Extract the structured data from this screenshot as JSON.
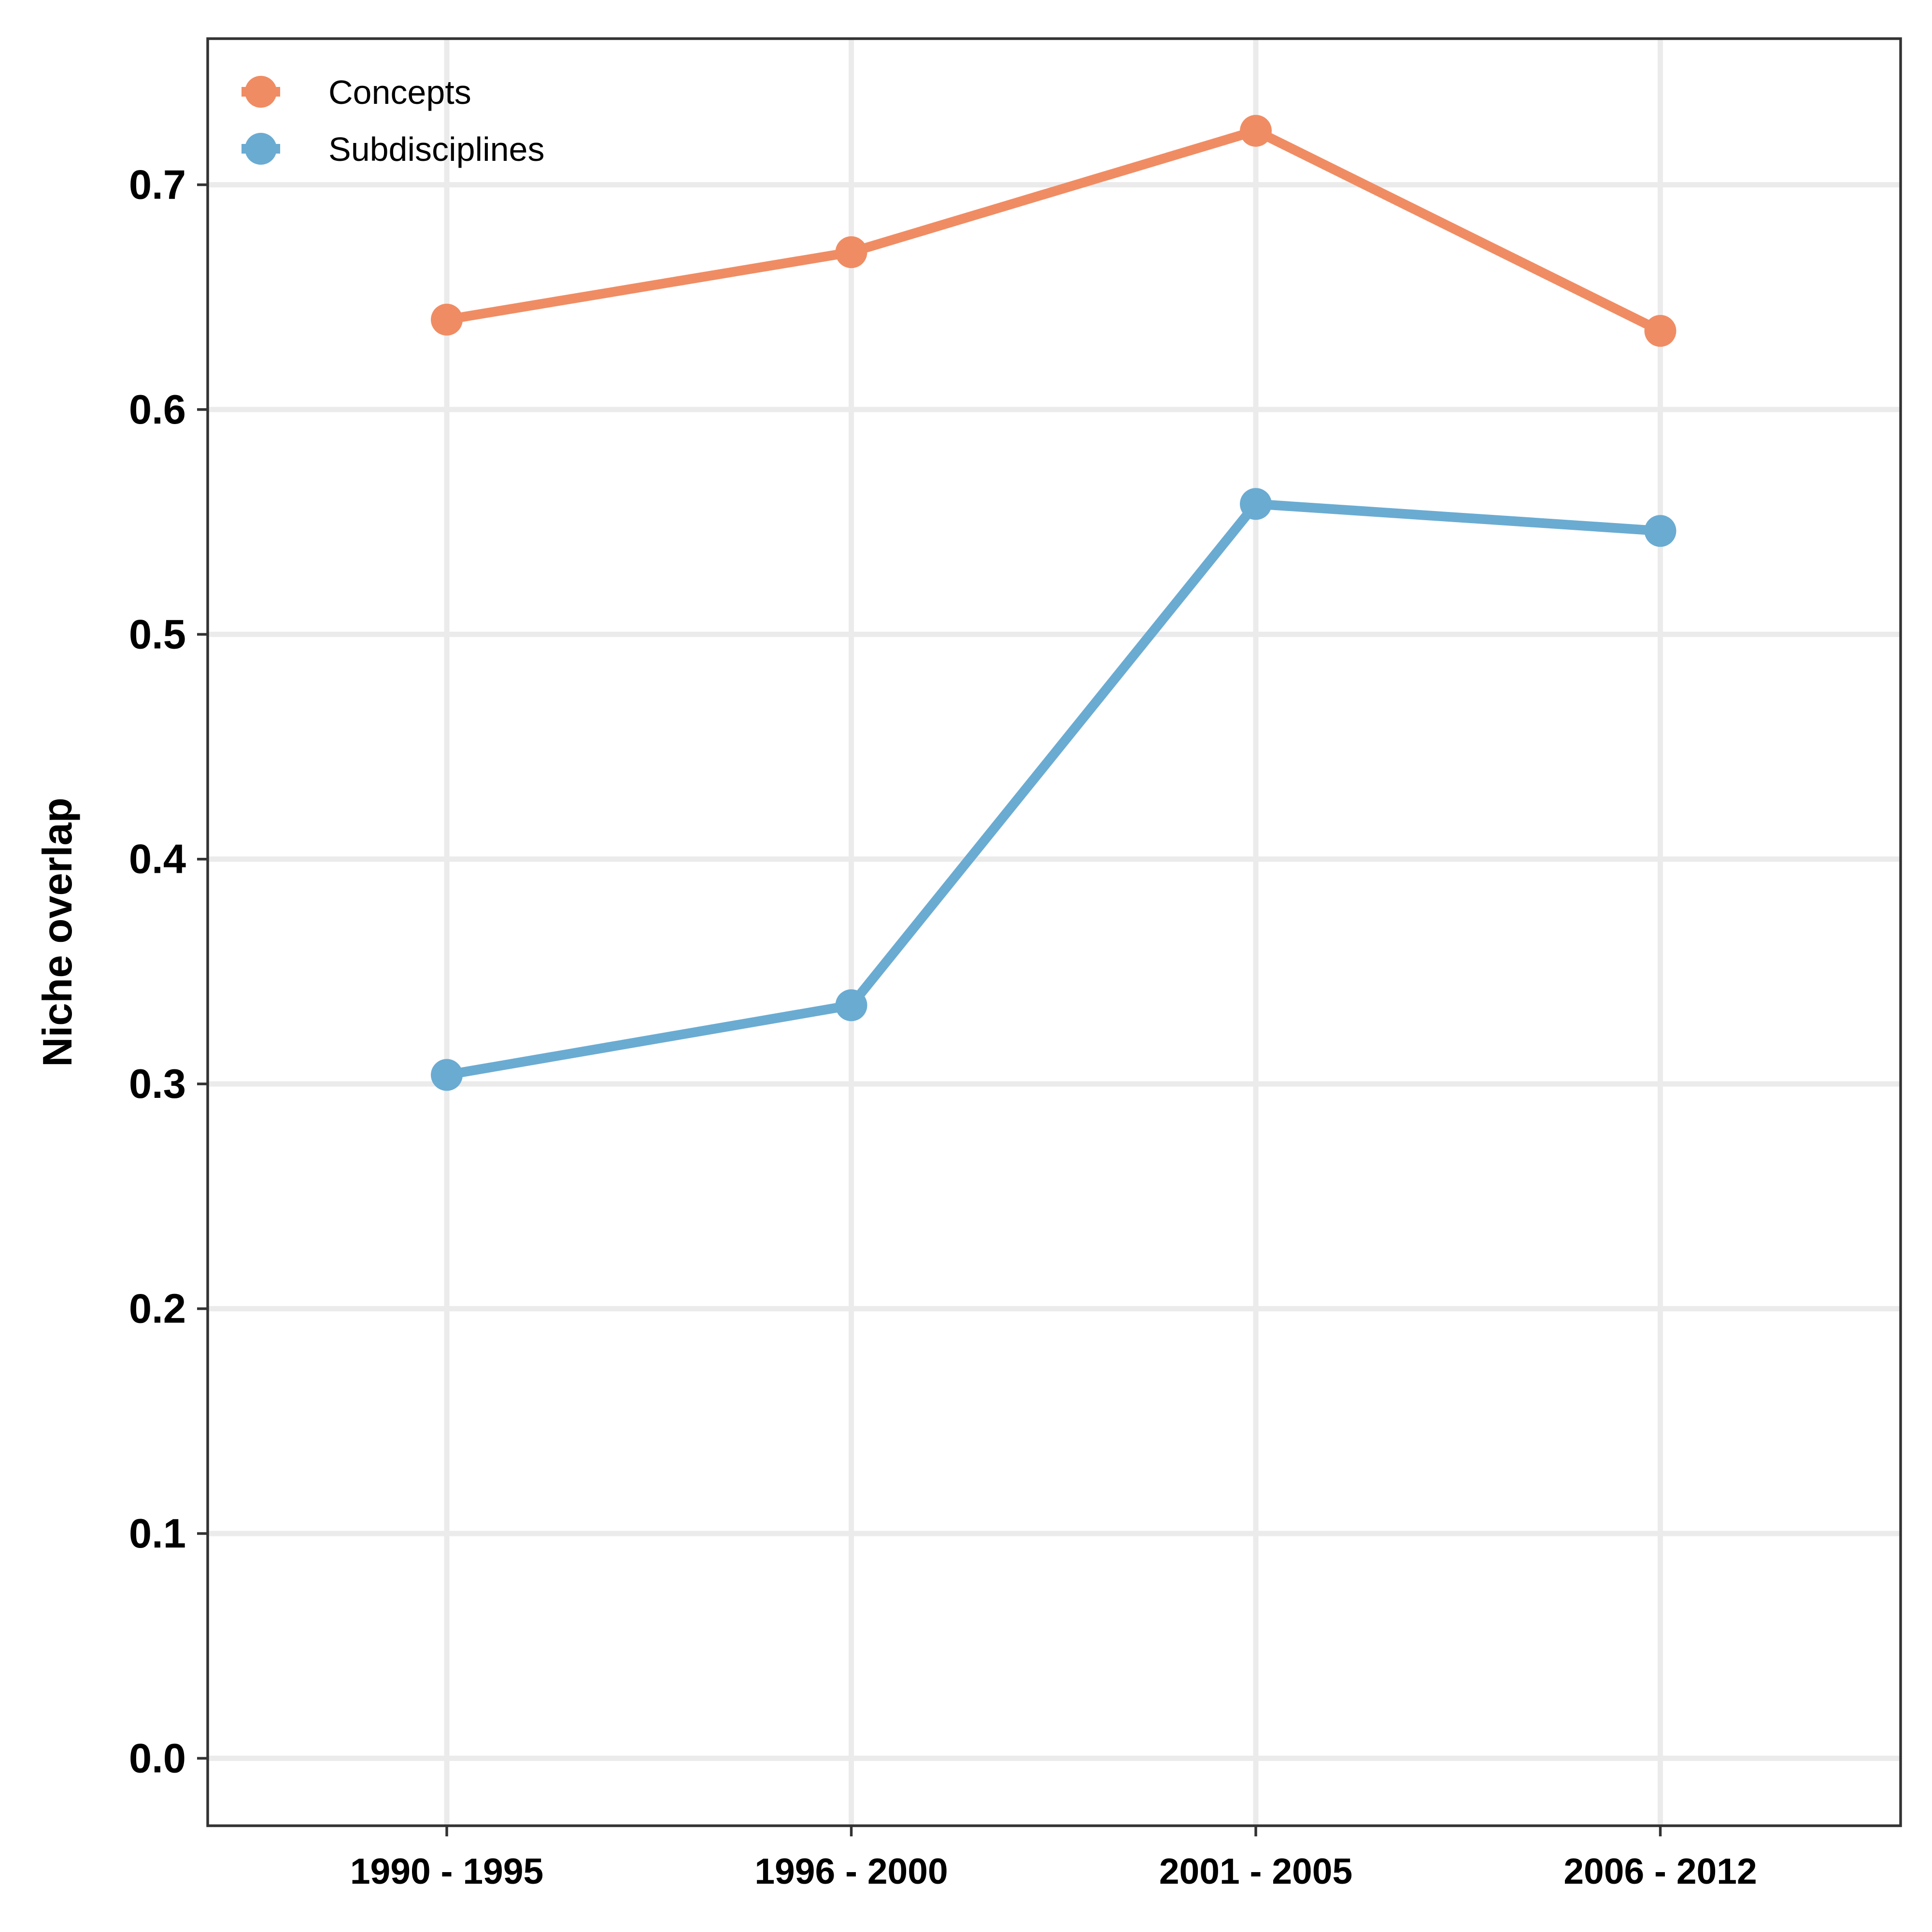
{
  "chart_data": {
    "type": "line",
    "title": "",
    "xlabel": "",
    "ylabel": "Niche overlap",
    "categories": [
      "1990 - 1995",
      "1996 - 2000",
      "2001 - 2005",
      "2006 - 2012"
    ],
    "ylim": [
      -0.03,
      0.765
    ],
    "yticks": [
      0.0,
      0.1,
      0.2,
      0.3,
      0.4,
      0.5,
      0.6,
      0.7
    ],
    "ytick_labels": [
      "0.0",
      "0.1",
      "0.2",
      "0.3",
      "0.4",
      "0.5",
      "0.6",
      "0.7"
    ],
    "grid": true,
    "legend_position": "top-left",
    "series": [
      {
        "name": "Concepts",
        "color": "#F08C63",
        "values": [
          0.64,
          0.67,
          0.724,
          0.635
        ]
      },
      {
        "name": "Subdisciplines",
        "color": "#6AABD2",
        "values": [
          0.304,
          0.335,
          0.558,
          0.546
        ]
      }
    ]
  }
}
